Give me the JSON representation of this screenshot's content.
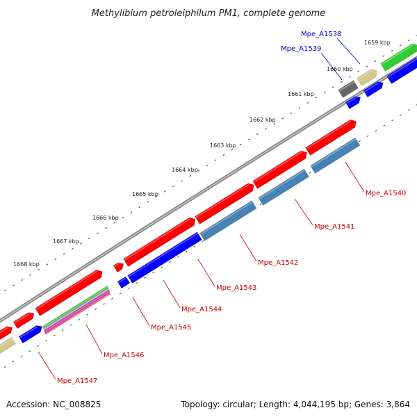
{
  "title": "Methylibium petroleiphilum PM1, complete genome",
  "accession": "Accession: NC_008825",
  "summary": "Topology: circular; Length: 4,044,195 bp; Genes: 3,864",
  "kbp_labels": [
    "1659 kbp",
    "1660 kbp",
    "1661 kbp",
    "1662 kbp",
    "1663 kbp",
    "1664 kbp",
    "1665 kbp",
    "1666 kbp",
    "1667 kbp",
    "1668 kbp"
  ],
  "gene_labels": [
    {
      "text": "Mpe_A1538",
      "color": "#0000cc"
    },
    {
      "text": "Mpe_A1539",
      "color": "#0000cc"
    },
    {
      "text": "Mpe_A1540",
      "color": "#cc0000"
    },
    {
      "text": "Mpe_A1541",
      "color": "#cc0000"
    },
    {
      "text": "Mpe_A1542",
      "color": "#cc0000"
    },
    {
      "text": "Mpe_A1543",
      "color": "#cc0000"
    },
    {
      "text": "Mpe_A1544",
      "color": "#cc0000"
    },
    {
      "text": "Mpe_A1545",
      "color": "#cc0000"
    },
    {
      "text": "Mpe_A1546",
      "color": "#cc0000"
    },
    {
      "text": "Mpe_A1547",
      "color": "#cc0000"
    }
  ],
  "colors": {
    "red": "#ff0000",
    "blue": "#0000ff",
    "steelblue": "#4682b4",
    "green": "#33cc33",
    "khaki": "#d2c98a",
    "gray": "#666666",
    "backbone": "#888888",
    "tick": "#1f7a1f"
  }
}
